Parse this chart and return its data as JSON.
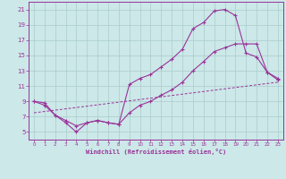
{
  "xlabel": "Windchill (Refroidissement éolien,°C)",
  "bg_color": "#cce8e8",
  "grid_color": "#aacccc",
  "line_color": "#993399",
  "xlim": [
    -0.5,
    23.5
  ],
  "ylim": [
    4,
    22
  ],
  "xticks": [
    0,
    1,
    2,
    3,
    4,
    5,
    6,
    7,
    8,
    9,
    10,
    11,
    12,
    13,
    14,
    15,
    16,
    17,
    18,
    19,
    20,
    21,
    22,
    23
  ],
  "yticks": [
    5,
    7,
    9,
    11,
    13,
    15,
    17,
    19,
    21
  ],
  "line1_x": [
    0,
    1,
    2,
    3,
    4,
    5,
    6,
    7,
    8,
    9,
    10,
    11,
    12,
    13,
    14,
    15,
    16,
    17,
    18,
    19,
    20,
    21,
    22,
    23
  ],
  "line1_y": [
    9.0,
    8.5,
    7.2,
    6.2,
    5.0,
    6.2,
    6.5,
    6.2,
    6.0,
    11.2,
    12.0,
    12.5,
    13.5,
    14.5,
    15.8,
    18.5,
    19.3,
    20.8,
    21.0,
    20.2,
    15.3,
    14.8,
    12.8,
    11.8
  ],
  "line2_x": [
    0,
    1,
    2,
    3,
    4,
    5,
    6,
    7,
    8,
    9,
    10,
    11,
    12,
    13,
    14,
    15,
    16,
    17,
    18,
    19,
    20,
    21,
    22,
    23
  ],
  "line2_y": [
    9.0,
    8.8,
    7.2,
    6.5,
    5.8,
    6.2,
    6.5,
    6.2,
    6.0,
    7.5,
    8.5,
    9.0,
    9.8,
    10.5,
    11.5,
    13.0,
    14.2,
    15.5,
    16.0,
    16.5,
    16.5,
    16.5,
    12.8,
    12.0
  ],
  "line3_x": [
    0,
    23
  ],
  "line3_y": [
    7.5,
    11.5
  ]
}
